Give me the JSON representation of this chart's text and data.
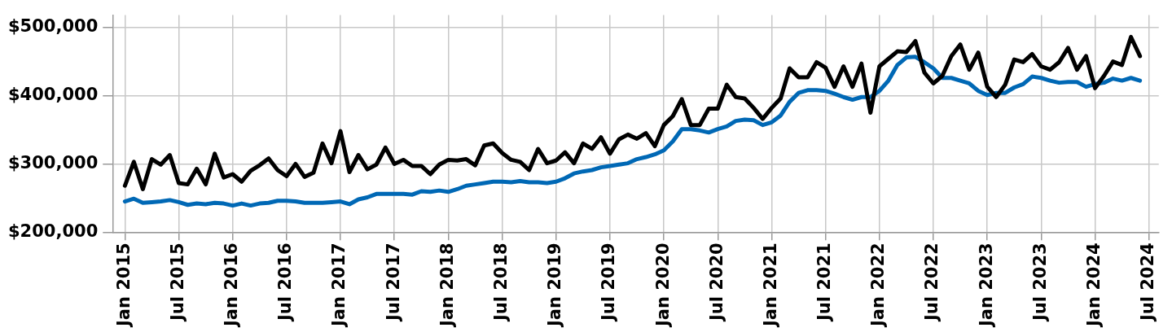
{
  "chart_data": {
    "type": "line",
    "x": [
      "2015-01",
      "2015-02",
      "2015-03",
      "2015-04",
      "2015-05",
      "2015-06",
      "2015-07",
      "2015-08",
      "2015-09",
      "2015-10",
      "2015-11",
      "2015-12",
      "2016-01",
      "2016-02",
      "2016-03",
      "2016-04",
      "2016-05",
      "2016-06",
      "2016-07",
      "2016-08",
      "2016-09",
      "2016-10",
      "2016-11",
      "2016-12",
      "2017-01",
      "2017-02",
      "2017-03",
      "2017-04",
      "2017-05",
      "2017-06",
      "2017-07",
      "2017-08",
      "2017-09",
      "2017-10",
      "2017-11",
      "2017-12",
      "2018-01",
      "2018-02",
      "2018-03",
      "2018-04",
      "2018-05",
      "2018-06",
      "2018-07",
      "2018-08",
      "2018-09",
      "2018-10",
      "2018-11",
      "2018-12",
      "2019-01",
      "2019-02",
      "2019-03",
      "2019-04",
      "2019-05",
      "2019-06",
      "2019-07",
      "2019-08",
      "2019-09",
      "2019-10",
      "2019-11",
      "2019-12",
      "2020-01",
      "2020-02",
      "2020-03",
      "2020-04",
      "2020-05",
      "2020-06",
      "2020-07",
      "2020-08",
      "2020-09",
      "2020-10",
      "2020-11",
      "2020-12",
      "2021-01",
      "2021-02",
      "2021-03",
      "2021-04",
      "2021-05",
      "2021-06",
      "2021-07",
      "2021-08",
      "2021-09",
      "2021-10",
      "2021-11",
      "2021-12",
      "2022-01",
      "2022-02",
      "2022-03",
      "2022-04",
      "2022-05",
      "2022-06",
      "2022-07",
      "2022-08",
      "2022-09",
      "2022-10",
      "2022-11",
      "2022-12",
      "2023-01",
      "2023-02",
      "2023-03",
      "2023-04",
      "2023-05",
      "2023-06",
      "2023-07",
      "2023-08",
      "2023-09",
      "2023-10",
      "2023-11",
      "2023-12",
      "2024-01",
      "2024-02",
      "2024-03",
      "2024-04",
      "2024-05",
      "2024-06"
    ],
    "series": [
      {
        "color": "#000000",
        "values": [
          268000,
          303000,
          263000,
          307000,
          299000,
          313000,
          272000,
          270000,
          293000,
          270000,
          315000,
          280000,
          285000,
          274000,
          290000,
          298000,
          308000,
          291000,
          282000,
          300000,
          281000,
          287000,
          330000,
          301000,
          348000,
          288000,
          313000,
          292000,
          299000,
          324000,
          300000,
          306000,
          297000,
          297000,
          285000,
          299000,
          306000,
          305000,
          307000,
          298000,
          327000,
          330000,
          316000,
          306000,
          303000,
          291000,
          322000,
          301000,
          305000,
          317000,
          301000,
          330000,
          322000,
          339000,
          315000,
          336000,
          343000,
          337000,
          345000,
          326000,
          357000,
          370000,
          395000,
          357000,
          357000,
          381000,
          381000,
          416000,
          398000,
          396000,
          382000,
          366000,
          382000,
          396000,
          440000,
          427000,
          427000,
          449000,
          441000,
          413000,
          443000,
          413000,
          447000,
          375000,
          443000,
          454000,
          465000,
          464000,
          480000,
          434000,
          418000,
          429000,
          458000,
          475000,
          438000,
          463000,
          413000,
          398000,
          416000,
          453000,
          449000,
          461000,
          443000,
          438000,
          449000,
          470000,
          438000,
          458000,
          411000,
          429000,
          450000,
          445000,
          486000,
          458000
        ]
      },
      {
        "color": "#0068b5",
        "values": [
          245000,
          249000,
          243000,
          244000,
          245000,
          247000,
          244000,
          240000,
          242000,
          241000,
          243000,
          242000,
          239000,
          242000,
          239000,
          242000,
          243000,
          246000,
          246000,
          245000,
          243000,
          243000,
          243000,
          244000,
          245000,
          241000,
          248000,
          251000,
          256000,
          256000,
          256000,
          256000,
          255000,
          260000,
          259000,
          261000,
          259000,
          263000,
          268000,
          270000,
          272000,
          274000,
          274000,
          273000,
          275000,
          273000,
          273000,
          272000,
          274000,
          279000,
          286000,
          289000,
          291000,
          295000,
          297000,
          299000,
          301000,
          307000,
          310000,
          314000,
          320000,
          333000,
          351000,
          351000,
          349000,
          346000,
          351000,
          355000,
          363000,
          365000,
          364000,
          357000,
          361000,
          371000,
          391000,
          404000,
          408000,
          408000,
          407000,
          403000,
          398000,
          394000,
          398000,
          398000,
          407000,
          422000,
          445000,
          456000,
          457000,
          449000,
          440000,
          426000,
          426000,
          422000,
          418000,
          407000,
          401000,
          404000,
          404000,
          412000,
          417000,
          428000,
          426000,
          422000,
          419000,
          420000,
          420000,
          413000,
          417000,
          419000,
          425000,
          422000,
          426000,
          422000
        ]
      }
    ],
    "xlim": [
      "2014-11-20",
      "2024-08-04"
    ],
    "xticks": [
      {
        "value": "2015-01",
        "label": "Jan 2015"
      },
      {
        "value": "2015-07",
        "label": "Jul 2015"
      },
      {
        "value": "2016-01",
        "label": "Jan 2016"
      },
      {
        "value": "2016-07",
        "label": "Jul 2016"
      },
      {
        "value": "2017-01",
        "label": "Jan 2017"
      },
      {
        "value": "2017-07",
        "label": "Jul 2017"
      },
      {
        "value": "2018-01",
        "label": "Jan 2018"
      },
      {
        "value": "2018-07",
        "label": "Jul 2018"
      },
      {
        "value": "2019-01",
        "label": "Jan 2019"
      },
      {
        "value": "2019-07",
        "label": "Jul 2019"
      },
      {
        "value": "2020-01",
        "label": "Jan 2020"
      },
      {
        "value": "2020-07",
        "label": "Jul 2020"
      },
      {
        "value": "2021-01",
        "label": "Jan 2021"
      },
      {
        "value": "2021-07",
        "label": "Jul 2021"
      },
      {
        "value": "2022-01",
        "label": "Jan 2022"
      },
      {
        "value": "2022-07",
        "label": "Jul 2022"
      },
      {
        "value": "2023-01",
        "label": "Jan 2023"
      },
      {
        "value": "2023-07",
        "label": "Jul 2023"
      },
      {
        "value": "2024-01",
        "label": "Jan 2024"
      },
      {
        "value": "2024-07",
        "label": "Jul 2024"
      }
    ],
    "ylim": [
      200000,
      518000
    ],
    "yticks": [
      {
        "value": 200000,
        "label": "$200,000"
      },
      {
        "value": 300000,
        "label": "$300,000"
      },
      {
        "value": 400000,
        "label": "$400,000"
      },
      {
        "value": 500000,
        "label": "$500,000"
      }
    ],
    "grid": true,
    "legend": false
  }
}
